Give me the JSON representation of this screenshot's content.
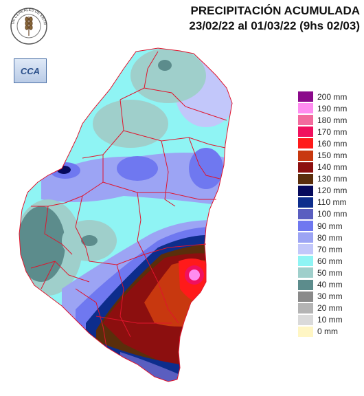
{
  "header": {
    "title": "PRECIPITACIÓN ACUMULADA",
    "subtitle": "23/02/22 al 01/03/22 (9hs 02/03)"
  },
  "logo": {
    "text": "BOLSA DE CEREALES DE ENTRE RIOS",
    "icon": "wheat-sheaf-icon"
  },
  "badge": {
    "text": "CCA"
  },
  "legend": {
    "items": [
      {
        "label": "200 mm",
        "color": "#8b0a8b"
      },
      {
        "label": "190 mm",
        "color": "#ff8cf0"
      },
      {
        "label": "180 mm",
        "color": "#f26b9e"
      },
      {
        "label": "170 mm",
        "color": "#f0105e"
      },
      {
        "label": "160 mm",
        "color": "#ff1a1a"
      },
      {
        "label": "150 mm",
        "color": "#c8380f"
      },
      {
        "label": "140 mm",
        "color": "#8c0f0f"
      },
      {
        "label": "130 mm",
        "color": "#5a2e0b"
      },
      {
        "label": "120 mm",
        "color": "#060a5c"
      },
      {
        "label": "110 mm",
        "color": "#0d2d8c"
      },
      {
        "label": "100 mm",
        "color": "#5a5ec0"
      },
      {
        "label": "90 mm",
        "color": "#6f78f0"
      },
      {
        "label": "80 mm",
        "color": "#9ca4f4"
      },
      {
        "label": "70 mm",
        "color": "#c2c7fa"
      },
      {
        "label": "60 mm",
        "color": "#8ff4f4"
      },
      {
        "label": "50 mm",
        "color": "#9fcfcb"
      },
      {
        "label": "40 mm",
        "color": "#5c8c8c"
      },
      {
        "label": "30 mm",
        "color": "#8a8a8a"
      },
      {
        "label": "20 mm",
        "color": "#b4b4b4"
      },
      {
        "label": "10 mm",
        "color": "#dadada"
      },
      {
        "label": "0 mm",
        "color": "#fff6c4"
      }
    ]
  },
  "colors": {
    "boundary": "#e0142c",
    "background": "#ffffff"
  }
}
